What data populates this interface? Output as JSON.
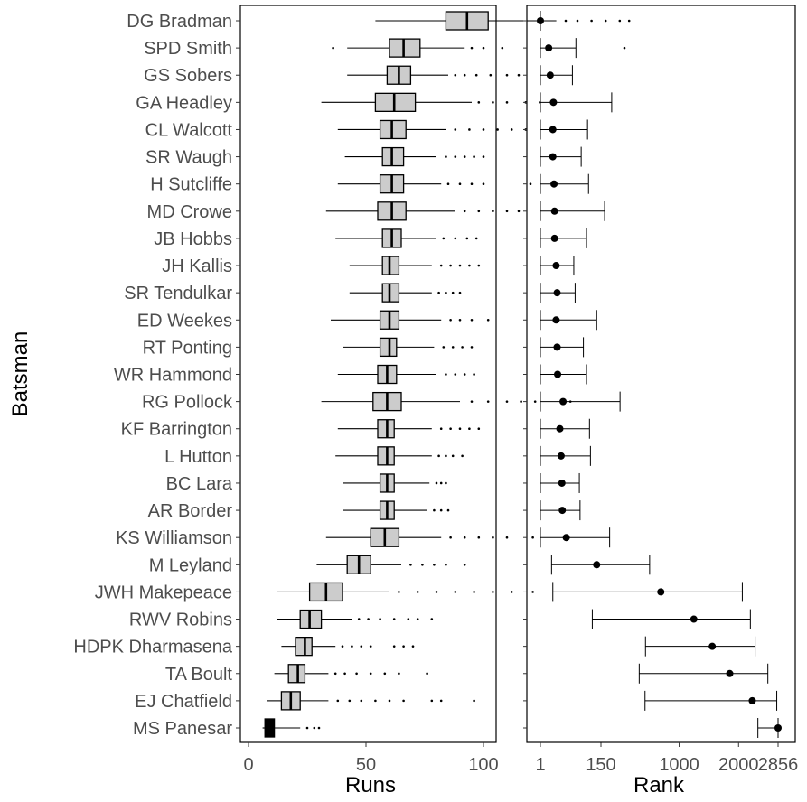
{
  "chart_data": [
    {
      "type": "boxplot",
      "xlabel": "Runs",
      "ylabel": "Batsman",
      "xlim": [
        -5,
        170
      ],
      "x_ticks": [
        0,
        50,
        100,
        150
      ],
      "categories": [
        "DG Bradman",
        "SPD Smith",
        "GS Sobers",
        "GA Headley",
        "CL Walcott",
        "SR Waugh",
        "H Sutcliffe",
        "MD Crowe",
        "JB Hobbs",
        "JH Kallis",
        "SR Tendulkar",
        "ED Weekes",
        "RT Ponting",
        "WR Hammond",
        "RG Pollock",
        "KF Barrington",
        "L Hutton",
        "BC Lara",
        "AR Border",
        "KS Williamson",
        "M Leyland",
        "JWH Makepeace",
        "RWV Robins",
        "HDPK Dharmasena",
        "TA Boult",
        "EJ Chatfield",
        "MS Panesar"
      ],
      "boxes": [
        {
          "q1": 84,
          "median": 93,
          "q3": 102,
          "lower_whisker": 54,
          "upper_whisker": 131,
          "outliers": [
            135,
            140,
            146,
            152,
            158,
            162
          ]
        },
        {
          "q1": 60,
          "median": 66,
          "q3": 73,
          "lower_whisker": 42,
          "upper_whisker": 92,
          "outliers": [
            36,
            95,
            100,
            108,
            128,
            160
          ]
        },
        {
          "q1": 59,
          "median": 64,
          "q3": 69,
          "lower_whisker": 42,
          "upper_whisker": 85,
          "outliers": [
            88,
            92,
            97,
            103,
            110,
            115
          ]
        },
        {
          "q1": 54,
          "median": 62,
          "q3": 71,
          "lower_whisker": 31,
          "upper_whisker": 95,
          "outliers": [
            98,
            104,
            110,
            118,
            124,
            130
          ]
        },
        {
          "q1": 56,
          "median": 61,
          "q3": 67,
          "lower_whisker": 38,
          "upper_whisker": 84,
          "outliers": [
            88,
            94,
            100,
            106,
            112,
            118
          ]
        },
        {
          "q1": 57,
          "median": 61,
          "q3": 66,
          "lower_whisker": 41,
          "upper_whisker": 80,
          "outliers": [
            84,
            88,
            92,
            96,
            100
          ]
        },
        {
          "q1": 56,
          "median": 61,
          "q3": 66,
          "lower_whisker": 38,
          "upper_whisker": 82,
          "outliers": [
            85,
            90,
            95,
            100,
            120
          ]
        },
        {
          "q1": 55,
          "median": 61,
          "q3": 67,
          "lower_whisker": 33,
          "upper_whisker": 88,
          "outliers": [
            92,
            98,
            104,
            110,
            115
          ]
        },
        {
          "q1": 57,
          "median": 61,
          "q3": 65,
          "lower_whisker": 37,
          "upper_whisker": 80,
          "outliers": [
            83,
            88,
            93,
            97
          ]
        },
        {
          "q1": 57,
          "median": 60,
          "q3": 64,
          "lower_whisker": 43,
          "upper_whisker": 78,
          "outliers": [
            82,
            86,
            90,
            94,
            98
          ]
        },
        {
          "q1": 57,
          "median": 60,
          "q3": 64,
          "lower_whisker": 43,
          "upper_whisker": 78,
          "outliers": [
            81,
            84,
            87,
            90
          ]
        },
        {
          "q1": 56,
          "median": 60,
          "q3": 64,
          "lower_whisker": 35,
          "upper_whisker": 82,
          "outliers": [
            86,
            90,
            95,
            102
          ]
        },
        {
          "q1": 56,
          "median": 60,
          "q3": 63,
          "lower_whisker": 40,
          "upper_whisker": 79,
          "outliers": [
            83,
            87,
            91,
            95
          ]
        },
        {
          "q1": 55,
          "median": 59,
          "q3": 63,
          "lower_whisker": 38,
          "upper_whisker": 80,
          "outliers": [
            84,
            88,
            92,
            96
          ]
        },
        {
          "q1": 53,
          "median": 59,
          "q3": 65,
          "lower_whisker": 31,
          "upper_whisker": 90,
          "outliers": [
            95,
            102,
            110,
            116,
            122,
            137
          ]
        },
        {
          "q1": 55,
          "median": 59,
          "q3": 62,
          "lower_whisker": 38,
          "upper_whisker": 78,
          "outliers": [
            82,
            86,
            90,
            94,
            98
          ]
        },
        {
          "q1": 55,
          "median": 59,
          "q3": 62,
          "lower_whisker": 37,
          "upper_whisker": 78,
          "outliers": [
            81,
            84,
            87,
            91
          ]
        },
        {
          "q1": 56,
          "median": 59,
          "q3": 62,
          "lower_whisker": 40,
          "upper_whisker": 77,
          "outliers": [
            80,
            82,
            84
          ]
        },
        {
          "q1": 56,
          "median": 59,
          "q3": 62,
          "lower_whisker": 40,
          "upper_whisker": 76,
          "outliers": [
            79,
            82,
            85
          ]
        },
        {
          "q1": 52,
          "median": 58,
          "q3": 64,
          "lower_whisker": 33,
          "upper_whisker": 82,
          "outliers": [
            86,
            92,
            98,
            104,
            110,
            121
          ]
        },
        {
          "q1": 42,
          "median": 47,
          "q3": 52,
          "lower_whisker": 29,
          "upper_whisker": 65,
          "outliers": [
            69,
            74,
            79,
            84,
            92
          ]
        },
        {
          "q1": 26,
          "median": 33,
          "q3": 40,
          "lower_whisker": 12,
          "upper_whisker": 60,
          "outliers": [
            64,
            72,
            80,
            88,
            96,
            104,
            112,
            121
          ]
        },
        {
          "q1": 22,
          "median": 26,
          "q3": 31,
          "lower_whisker": 12,
          "upper_whisker": 44,
          "outliers": [
            47,
            51,
            56,
            62,
            68,
            72,
            78
          ]
        },
        {
          "q1": 20,
          "median": 24,
          "q3": 27,
          "lower_whisker": 14,
          "upper_whisker": 37,
          "outliers": [
            40,
            44,
            48,
            52,
            62,
            66,
            70
          ]
        },
        {
          "q1": 17,
          "median": 21,
          "q3": 24,
          "lower_whisker": 11,
          "upper_whisker": 34,
          "outliers": [
            37,
            41,
            46,
            52,
            58,
            64,
            76
          ]
        },
        {
          "q1": 14,
          "median": 18,
          "q3": 22,
          "lower_whisker": 8,
          "upper_whisker": 34,
          "outliers": [
            38,
            43,
            48,
            54,
            60,
            66,
            78,
            82,
            96
          ]
        },
        {
          "q1": 7,
          "median": 9,
          "q3": 11,
          "lower_whisker": 6,
          "upper_whisker": 22,
          "outliers": [
            25,
            28,
            30
          ]
        }
      ]
    },
    {
      "type": "dot-errorbar",
      "xlabel": "Rank",
      "x_scale": "sqrt",
      "xlim": [
        1,
        2900
      ],
      "x_ticks": [
        1,
        1000,
        2000,
        2856
      ],
      "categories": [
        "DG Bradman",
        "SPD Smith",
        "GS Sobers",
        "GA Headley",
        "CL Walcott",
        "SR Waugh",
        "H Sutcliffe",
        "MD Crowe",
        "JB Hobbs",
        "JH Kallis",
        "SR Tendulkar",
        "ED Weekes",
        "RT Ponting",
        "WR Hammond",
        "RG Pollock",
        "KF Barrington",
        "L Hutton",
        "BC Lara",
        "AR Border",
        "KS Williamson",
        "M Leyland",
        "JWH Makepeace",
        "RWV Robins",
        "HDPK Dharmasena",
        "TA Boult",
        "EJ Chatfield",
        "MS Panesar"
      ],
      "points": [
        {
          "rank": 1,
          "low": 1,
          "high": 1
        },
        {
          "rank": 8,
          "low": 1,
          "high": 78
        },
        {
          "rank": 10,
          "low": 1,
          "high": 65
        },
        {
          "rank": 15,
          "low": 1,
          "high": 280
        },
        {
          "rank": 14,
          "low": 1,
          "high": 130
        },
        {
          "rank": 14,
          "low": 1,
          "high": 100
        },
        {
          "rank": 16,
          "low": 1,
          "high": 135
        },
        {
          "rank": 17,
          "low": 1,
          "high": 230
        },
        {
          "rank": 17,
          "low": 1,
          "high": 125
        },
        {
          "rank": 20,
          "low": 1,
          "high": 70
        },
        {
          "rank": 22,
          "low": 1,
          "high": 75
        },
        {
          "rank": 20,
          "low": 1,
          "high": 180
        },
        {
          "rank": 22,
          "low": 1,
          "high": 110
        },
        {
          "rank": 23,
          "low": 1,
          "high": 125
        },
        {
          "rank": 36,
          "low": 1,
          "high": 345
        },
        {
          "rank": 28,
          "low": 1,
          "high": 140
        },
        {
          "rank": 31,
          "low": 1,
          "high": 145
        },
        {
          "rank": 33,
          "low": 1,
          "high": 92
        },
        {
          "rank": 34,
          "low": 1,
          "high": 95
        },
        {
          "rank": 45,
          "low": 1,
          "high": 265
        },
        {
          "rank": 180,
          "low": 12,
          "high": 630
        },
        {
          "rank": 760,
          "low": 14,
          "high": 2075
        },
        {
          "rank": 1215,
          "low": 155,
          "high": 2240
        },
        {
          "rank": 1515,
          "low": 585,
          "high": 2340
        },
        {
          "rank": 1830,
          "low": 520,
          "high": 2620
        },
        {
          "rank": 2280,
          "low": 580,
          "high": 2825
        },
        {
          "rank": 2856,
          "low": 2400,
          "high": 2856
        }
      ]
    }
  ]
}
